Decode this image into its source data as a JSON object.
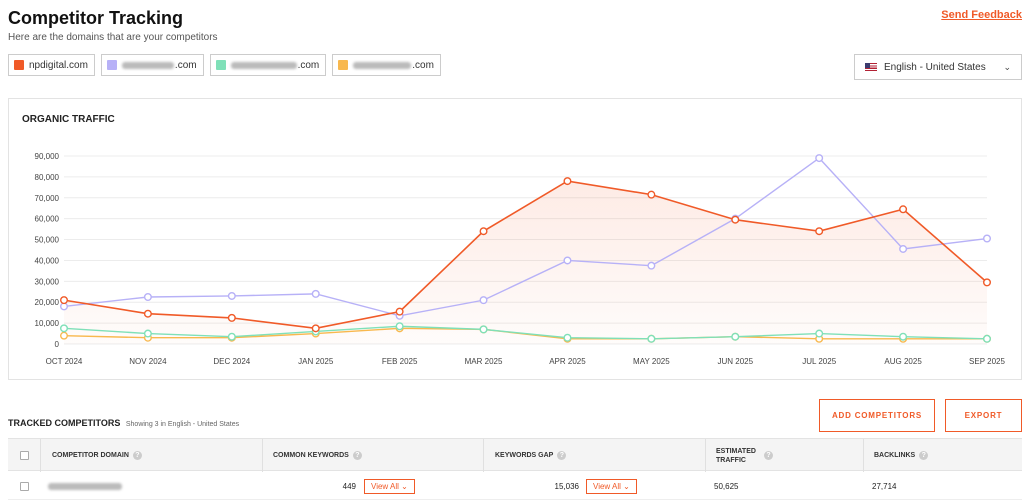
{
  "header": {
    "title": "Competitor Tracking",
    "subtitle": "Here are the domains that are your competitors",
    "feedback_label": "Send Feedback"
  },
  "domains": [
    {
      "label": "npdigital.com",
      "color": "#f05a28",
      "visible_label": "npdigital.com"
    },
    {
      "label": ".com",
      "color": "#b7b1f7"
    },
    {
      "label": ".com",
      "color": "#7fe0b8"
    },
    {
      "label": ".com",
      "color": "#f8b84e"
    }
  ],
  "language": {
    "label": "English - United States",
    "icon": "us-flag-icon"
  },
  "chart": {
    "title": "ORGANIC TRAFFIC"
  },
  "chart_data": {
    "type": "line",
    "x": [
      "OCT 2024",
      "NOV 2024",
      "DEC 2024",
      "JAN 2025",
      "FEB 2025",
      "MAR 2025",
      "APR 2025",
      "MAY 2025",
      "JUN 2025",
      "JUL 2025",
      "AUG 2025",
      "SEP 2025"
    ],
    "yticks": [
      "0",
      "10,000",
      "20,000",
      "30,000",
      "40,000",
      "50,000",
      "60,000",
      "70,000",
      "80,000",
      "90,000"
    ],
    "ylim": [
      0,
      90000
    ],
    "grid": true,
    "series": [
      {
        "color": "#f05a28",
        "values": [
          21000,
          14500,
          12500,
          7500,
          15500,
          54000,
          78000,
          71500,
          59500,
          54000,
          64500,
          29500
        ]
      },
      {
        "color": "#b7b1f7",
        "values": [
          18000,
          22500,
          23000,
          24000,
          13500,
          21000,
          40000,
          37500,
          60000,
          89000,
          45500,
          50500
        ]
      },
      {
        "color": "#7fe0b8",
        "values": [
          7500,
          5000,
          3500,
          6000,
          8500,
          7000,
          3000,
          2500,
          3500,
          5000,
          3500,
          2500
        ]
      },
      {
        "color": "#f8b84e",
        "values": [
          4000,
          3000,
          3000,
          5000,
          7500,
          7000,
          2500,
          2500,
          3500,
          2500,
          2500,
          2500
        ]
      }
    ]
  },
  "tracked": {
    "title": "TRACKED COMPETITORS",
    "note": "Showing 3 in English - United States"
  },
  "buttons": {
    "add": "ADD COMPETITORS",
    "export": "EXPORT"
  },
  "table": {
    "headers": {
      "domain": "COMPETITOR DOMAIN",
      "common": "COMMON KEYWORDS",
      "gap": "KEYWORDS GAP",
      "traffic": "ESTIMATED TRAFFIC",
      "backlinks": "BACKLINKS"
    },
    "rows": [
      {
        "common": "449",
        "view_all": "View All",
        "gap": "15,036",
        "view_all_2": "View All",
        "traffic": "50,625",
        "backlinks": "27,714"
      }
    ]
  }
}
